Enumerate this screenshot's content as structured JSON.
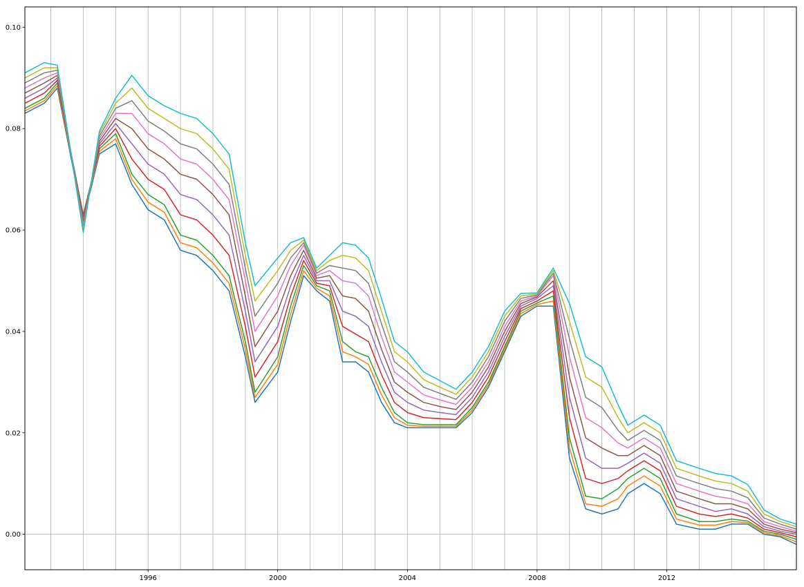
{
  "chart_data": {
    "type": "line",
    "title": "",
    "xlabel": "",
    "ylabel": "",
    "xlim": [
      1992.2,
      2016.0
    ],
    "ylim": [
      -0.007,
      0.104
    ],
    "grid": "vertical-yearly",
    "x_ticks": [
      {
        "value": 1996,
        "label": "1996"
      },
      {
        "value": 2000,
        "label": "2000"
      },
      {
        "value": 2004,
        "label": "2004"
      },
      {
        "value": 2008,
        "label": "2008"
      },
      {
        "value": 2012,
        "label": "2012"
      }
    ],
    "y_ticks": [
      {
        "value": 0.0,
        "label": "0.00"
      },
      {
        "value": 0.02,
        "label": "0.02"
      },
      {
        "value": 0.04,
        "label": "0.04"
      },
      {
        "value": 0.06,
        "label": "0.06"
      },
      {
        "value": 0.08,
        "label": "0.08"
      },
      {
        "value": 0.1,
        "label": "0.10"
      }
    ],
    "x": [
      1992.2,
      1992.8,
      1993.2,
      1994.0,
      1994.5,
      1995.0,
      1995.5,
      1996.0,
      1996.5,
      1997.0,
      1997.5,
      1998.0,
      1998.5,
      1999.0,
      1999.3,
      2000.0,
      2000.4,
      2000.8,
      2001.2,
      2001.6,
      2002.0,
      2002.4,
      2002.8,
      2003.2,
      2003.6,
      2004.0,
      2004.5,
      2005.0,
      2005.5,
      2006.0,
      2006.5,
      2007.0,
      2007.5,
      2008.0,
      2008.5,
      2009.0,
      2009.5,
      2010.0,
      2010.5,
      2010.8,
      2011.3,
      2011.8,
      2012.3,
      2013.0,
      2013.5,
      2014.0,
      2014.5,
      2015.0,
      2015.5,
      2016.0
    ],
    "series": [
      {
        "values": [
          0.083,
          0.085,
          0.088,
          0.062,
          0.075,
          0.077,
          0.069,
          0.064,
          0.062,
          0.056,
          0.055,
          0.052,
          0.048,
          0.035,
          0.026,
          0.032,
          0.042,
          0.051,
          0.048,
          0.046,
          0.034,
          0.034,
          0.032,
          0.026,
          0.022,
          0.021,
          0.021,
          0.021,
          0.021,
          0.024,
          0.029,
          0.036,
          0.043,
          0.045,
          0.045,
          0.015,
          0.005,
          0.004,
          0.005,
          0.008,
          0.01,
          0.008,
          0.002,
          0.001,
          0.001,
          0.002,
          0.002,
          0.0,
          -0.0005,
          -0.002
        ]
      },
      {
        "values": [
          0.0835,
          0.0855,
          0.0885,
          0.0625,
          0.0755,
          0.078,
          0.07,
          0.0655,
          0.0635,
          0.0575,
          0.0565,
          0.0535,
          0.0495,
          0.0365,
          0.027,
          0.0335,
          0.0435,
          0.052,
          0.0485,
          0.047,
          0.036,
          0.035,
          0.0335,
          0.0275,
          0.023,
          0.0215,
          0.0213,
          0.0213,
          0.0213,
          0.0245,
          0.0295,
          0.0365,
          0.0435,
          0.0453,
          0.046,
          0.017,
          0.006,
          0.0055,
          0.007,
          0.0095,
          0.0115,
          0.0095,
          0.003,
          0.0018,
          0.0018,
          0.0025,
          0.0023,
          0.0003,
          -0.0003,
          -0.0015
        ]
      },
      {
        "values": [
          0.084,
          0.086,
          0.089,
          0.063,
          0.076,
          0.079,
          0.071,
          0.067,
          0.065,
          0.059,
          0.058,
          0.055,
          0.051,
          0.038,
          0.028,
          0.035,
          0.045,
          0.053,
          0.049,
          0.048,
          0.038,
          0.036,
          0.035,
          0.029,
          0.024,
          0.022,
          0.0216,
          0.0216,
          0.0216,
          0.025,
          0.03,
          0.037,
          0.044,
          0.0456,
          0.047,
          0.019,
          0.0075,
          0.007,
          0.009,
          0.011,
          0.013,
          0.011,
          0.004,
          0.0025,
          0.0025,
          0.003,
          0.0026,
          0.0006,
          0.0,
          -0.001
        ]
      },
      {
        "values": [
          0.085,
          0.087,
          0.0895,
          0.0625,
          0.0765,
          0.08,
          0.074,
          0.07,
          0.068,
          0.063,
          0.062,
          0.059,
          0.055,
          0.041,
          0.031,
          0.038,
          0.047,
          0.054,
          0.0495,
          0.049,
          0.041,
          0.0395,
          0.038,
          0.0315,
          0.026,
          0.024,
          0.023,
          0.0228,
          0.0226,
          0.026,
          0.031,
          0.038,
          0.0445,
          0.046,
          0.048,
          0.023,
          0.011,
          0.01,
          0.011,
          0.0125,
          0.0145,
          0.0125,
          0.0055,
          0.004,
          0.0035,
          0.004,
          0.0032,
          0.001,
          0.0003,
          -0.0005
        ]
      },
      {
        "values": [
          0.086,
          0.088,
          0.09,
          0.062,
          0.077,
          0.081,
          0.077,
          0.073,
          0.071,
          0.067,
          0.066,
          0.063,
          0.059,
          0.044,
          0.034,
          0.041,
          0.049,
          0.055,
          0.05,
          0.05,
          0.044,
          0.043,
          0.041,
          0.034,
          0.028,
          0.026,
          0.0245,
          0.024,
          0.0236,
          0.027,
          0.032,
          0.039,
          0.045,
          0.0465,
          0.049,
          0.027,
          0.015,
          0.013,
          0.013,
          0.014,
          0.016,
          0.014,
          0.007,
          0.0055,
          0.0045,
          0.005,
          0.004,
          0.0015,
          0.0006,
          0.0
        ]
      },
      {
        "values": [
          0.087,
          0.089,
          0.0905,
          0.0615,
          0.0775,
          0.082,
          0.08,
          0.076,
          0.074,
          0.071,
          0.07,
          0.067,
          0.063,
          0.047,
          0.037,
          0.044,
          0.051,
          0.056,
          0.0505,
          0.051,
          0.047,
          0.0465,
          0.044,
          0.0365,
          0.03,
          0.028,
          0.026,
          0.0252,
          0.0246,
          0.028,
          0.033,
          0.04,
          0.0455,
          0.0468,
          0.05,
          0.031,
          0.019,
          0.017,
          0.0155,
          0.0155,
          0.0175,
          0.0155,
          0.0085,
          0.007,
          0.006,
          0.006,
          0.005,
          0.002,
          0.001,
          0.0003
        ]
      },
      {
        "values": [
          0.088,
          0.09,
          0.091,
          0.061,
          0.078,
          0.083,
          0.083,
          0.079,
          0.077,
          0.074,
          0.073,
          0.07,
          0.066,
          0.05,
          0.04,
          0.047,
          0.053,
          0.057,
          0.051,
          0.052,
          0.05,
          0.0495,
          0.047,
          0.039,
          0.032,
          0.03,
          0.0275,
          0.0265,
          0.0256,
          0.029,
          0.034,
          0.041,
          0.046,
          0.047,
          0.051,
          0.035,
          0.023,
          0.021,
          0.018,
          0.017,
          0.019,
          0.017,
          0.01,
          0.0085,
          0.0075,
          0.007,
          0.006,
          0.0025,
          0.0015,
          0.0006
        ]
      },
      {
        "values": [
          0.089,
          0.091,
          0.0915,
          0.0605,
          0.0785,
          0.084,
          0.0855,
          0.0815,
          0.0795,
          0.077,
          0.076,
          0.073,
          0.069,
          0.0525,
          0.043,
          0.0495,
          0.0545,
          0.0575,
          0.0515,
          0.053,
          0.0525,
          0.052,
          0.0495,
          0.0415,
          0.034,
          0.032,
          0.029,
          0.0278,
          0.0266,
          0.03,
          0.035,
          0.042,
          0.0465,
          0.0472,
          0.0515,
          0.0385,
          0.027,
          0.025,
          0.0205,
          0.0185,
          0.0205,
          0.0185,
          0.0115,
          0.01,
          0.009,
          0.0085,
          0.0072,
          0.0032,
          0.002,
          0.001
        ]
      },
      {
        "values": [
          0.09,
          0.092,
          0.092,
          0.06,
          0.079,
          0.085,
          0.088,
          0.084,
          0.082,
          0.08,
          0.079,
          0.076,
          0.072,
          0.055,
          0.046,
          0.052,
          0.056,
          0.058,
          0.052,
          0.054,
          0.055,
          0.0545,
          0.052,
          0.044,
          0.036,
          0.034,
          0.0305,
          0.029,
          0.0276,
          0.031,
          0.036,
          0.043,
          0.047,
          0.0474,
          0.052,
          0.042,
          0.031,
          0.029,
          0.023,
          0.02,
          0.022,
          0.02,
          0.013,
          0.0115,
          0.0105,
          0.01,
          0.0085,
          0.004,
          0.0025,
          0.0015
        ]
      },
      {
        "values": [
          0.091,
          0.093,
          0.0925,
          0.0595,
          0.0795,
          0.086,
          0.0905,
          0.0865,
          0.0845,
          0.083,
          0.082,
          0.079,
          0.075,
          0.0575,
          0.049,
          0.0545,
          0.0575,
          0.0585,
          0.0525,
          0.055,
          0.0575,
          0.057,
          0.0545,
          0.0465,
          0.038,
          0.036,
          0.032,
          0.0303,
          0.0286,
          0.032,
          0.037,
          0.044,
          0.0475,
          0.0476,
          0.0525,
          0.0455,
          0.035,
          0.033,
          0.0255,
          0.0215,
          0.0235,
          0.0215,
          0.0145,
          0.013,
          0.012,
          0.0115,
          0.0098,
          0.0048,
          0.003,
          0.002
        ]
      }
    ]
  }
}
